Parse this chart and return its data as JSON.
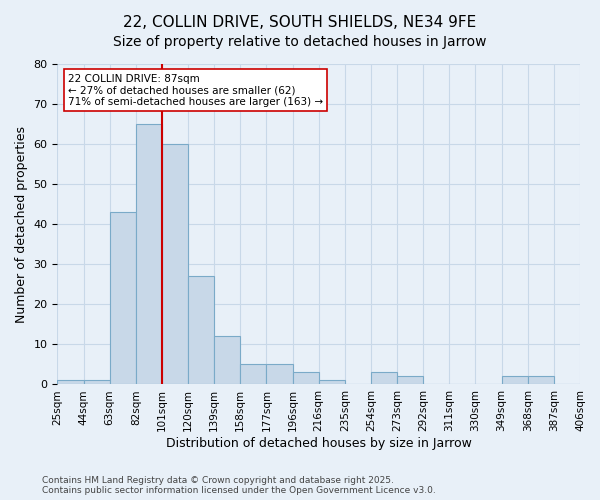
{
  "title": "22, COLLIN DRIVE, SOUTH SHIELDS, NE34 9FE",
  "subtitle": "Size of property relative to detached houses in Jarrow",
  "xlabel": "Distribution of detached houses by size in Jarrow",
  "ylabel": "Number of detached properties",
  "tick_labels": [
    "25sqm",
    "44sqm",
    "63sqm",
    "82sqm",
    "101sqm",
    "120sqm",
    "139sqm",
    "158sqm",
    "177sqm",
    "196sqm",
    "216sqm",
    "235sqm",
    "254sqm",
    "273sqm",
    "292sqm",
    "311sqm",
    "330sqm",
    "349sqm",
    "368sqm",
    "387sqm",
    "406sqm"
  ],
  "bar_values": [
    1,
    1,
    43,
    65,
    60,
    27,
    12,
    5,
    5,
    3,
    1,
    0,
    3,
    2,
    0,
    0,
    0,
    2,
    2,
    0
  ],
  "bar_color": "#c8d8e8",
  "bar_edge_color": "#7aaac8",
  "annotation_text": "22 COLLIN DRIVE: 87sqm\n← 27% of detached houses are smaller (62)\n71% of semi-detached houses are larger (163) →",
  "annotation_box_color": "#ffffff",
  "annotation_box_edge": "#cc0000",
  "vline_x": 3.5,
  "vline_color": "#cc0000",
  "vline_lw": 1.5,
  "ylim": [
    0,
    80
  ],
  "yticks": [
    0,
    10,
    20,
    30,
    40,
    50,
    60,
    70,
    80
  ],
  "grid_color": "#c8d8e8",
  "footer": "Contains HM Land Registry data © Crown copyright and database right 2025.\nContains public sector information licensed under the Open Government Licence v3.0.",
  "bg_color": "#e8f0f8",
  "title_fontsize": 11,
  "subtitle_fontsize": 10,
  "label_fontsize": 9,
  "tick_fontsize": 7.5
}
